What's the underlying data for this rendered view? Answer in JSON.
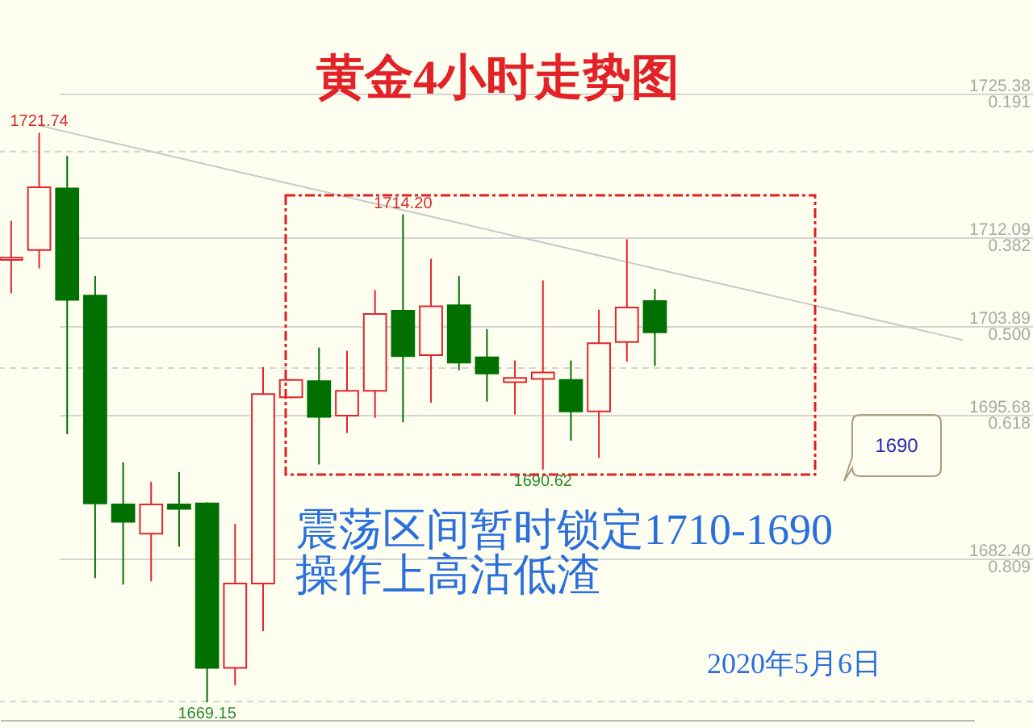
{
  "chart_data": {
    "type": "candlestick",
    "title": "黄金4小时走势图",
    "categories": [
      null,
      null,
      null,
      null,
      null,
      null,
      null,
      null,
      null,
      null,
      null,
      null,
      null,
      null,
      null,
      null,
      null,
      null,
      null,
      null,
      null,
      null,
      null,
      null,
      null,
      null,
      null,
      null,
      null,
      null,
      null,
      null,
      null,
      null,
      null
    ],
    "ohlc": [
      [
        1710.0,
        1713.6,
        1706.9,
        1710.2
      ],
      [
        1710.9,
        1721.74,
        1709.2,
        1716.7
      ],
      [
        1716.6,
        1719.6,
        1693.9,
        1706.3
      ],
      [
        1706.7,
        1708.5,
        1680.6,
        1687.5
      ],
      [
        1687.4,
        1691.3,
        1680.0,
        1685.8
      ],
      [
        1684.7,
        1689.5,
        1680.3,
        1687.4
      ],
      [
        1687.4,
        1690.4,
        1683.5,
        1687.0
      ],
      [
        1687.5,
        1687.6,
        1669.15,
        1672.3
      ],
      [
        1672.3,
        1685.6,
        1670.7,
        1680.1
      ],
      [
        1680.1,
        1700.1,
        1675.7,
        1697.6
      ],
      [
        1697.3,
        1699.0,
        1697.2,
        1698.9
      ],
      [
        1698.8,
        1701.9,
        1691.1,
        1695.5
      ],
      [
        1695.6,
        1701.6,
        1694.0,
        1697.9
      ],
      [
        1697.9,
        1707.2,
        1695.4,
        1705.0
      ],
      [
        1705.3,
        1714.2,
        1695.0,
        1701.1
      ],
      [
        1701.2,
        1710.1,
        1696.8,
        1705.7
      ],
      [
        1705.8,
        1708.5,
        1699.8,
        1700.5
      ],
      [
        1701.0,
        1703.6,
        1696.9,
        1699.5
      ],
      [
        1698.7,
        1700.7,
        1695.7,
        1699.1
      ],
      [
        1699.0,
        1708.1,
        1690.62,
        1699.6
      ],
      [
        1698.9,
        1700.7,
        1693.3,
        1696.0
      ],
      [
        1696.0,
        1705.4,
        1691.7,
        1702.3
      ],
      [
        1702.4,
        1711.9,
        1700.6,
        1705.6
      ],
      [
        1706.2,
        1707.3,
        1700.2,
        1703.3
      ],
      null,
      null,
      null,
      null,
      null,
      null,
      null,
      null,
      null,
      null,
      null
    ],
    "colors": [
      "#e4252c",
      "#e4252c",
      "#007000",
      "#007000",
      "#007000",
      "#e4252c",
      "#007000",
      "#007000",
      "#e4252c",
      "#e4252c",
      "#e4252c",
      "#007000",
      "#e4252c",
      "#e4252c",
      "#007000",
      "#e4252c",
      "#007000",
      "#007000",
      "#e4252c",
      "#e4252c",
      "#007000",
      "#e4252c",
      "#e4252c",
      "#007000",
      null,
      null,
      null,
      null,
      null,
      null,
      null,
      null,
      null,
      null,
      null
    ],
    "series": [
      {
        "type": "line",
        "color": "#c8c8c8",
        "values": [
          null,
          1722.4,
          1721.8,
          1721.2,
          1720.6,
          1720.0,
          1719.4,
          1718.8,
          1718.2,
          1717.6,
          1717.0,
          1716.4,
          1715.8,
          1715.2,
          1714.6,
          1714.0,
          1713.4,
          1712.8,
          1712.2,
          1711.6,
          1711.0,
          1710.4,
          1709.8,
          1709.2,
          1708.6,
          1708.0,
          1707.4,
          1706.8,
          1706.2,
          1705.6,
          1705.0,
          1704.4,
          1703.8,
          1703.2,
          1702.6
        ]
      }
    ],
    "ylim": [
      1667.5,
      1734
    ],
    "yticks": [
      1725.38,
      1712.09,
      1703.89,
      1695.68,
      {
        "value": 1682.4,
        "label": "1682.40"
      }
    ],
    "y2lim": [
      1.0232,
      0.067
    ],
    "y2ticks": [
      0.191,
      0.382,
      {
        "value": 0.5,
        "label": "0.500"
      },
      0.618,
      0.809
    ],
    "grid": "y",
    "tick_labels": "y",
    "ref_lines": [
      {
        "axis": "y",
        "value": 1720,
        "color": "#d4d4d4",
        "line_style": "dashed"
      },
      {
        "axis": "y",
        "value": 1700,
        "color": "#d4d4d4",
        "line_style": "dashed"
      },
      {
        "axis": "y",
        "value": 1669.2,
        "color": "#d4d4d4",
        "line_style": "dashed"
      }
    ],
    "annotations": [
      {
        "text": "1721.74",
        "y": 1721.74
      },
      {
        "text": "1714.20",
        "y": 1714.2
      },
      {
        "text": "1690.62",
        "y": 1690.62
      },
      {
        "text": "1669.15",
        "y": 1669.15
      },
      "1690",
      "震荡区间暂时锁定1710-1690",
      "操作上高沽低渣",
      "2020年5月6日"
    ]
  }
}
